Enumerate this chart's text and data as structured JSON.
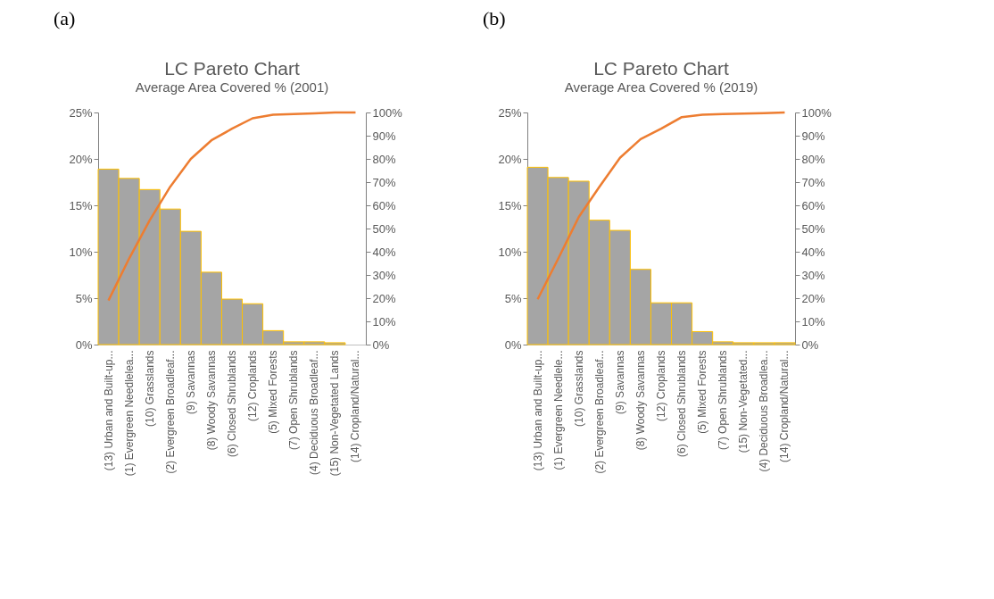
{
  "chart_data": [
    {
      "type": "bar",
      "title": "LC Pareto Chart",
      "subtitle": "Average Area Covered % (2001)",
      "annotations": [
        "(a)"
      ],
      "categories": [
        "(13) Urban and Built-up...",
        "(1) Evergreen Needlelea...",
        "(10) Grasslands",
        "(2) Evergreen Broadleaf...",
        "(9) Savannas",
        "(8) Woody Savannas",
        "(6) Closed Shrublands",
        "(12) Croplands",
        "(5) Mixed Forests",
        "(7) Open Shrublands",
        "(4) Deciduous Broadleaf...",
        "(15) Non-Vegetated Lands",
        "(14) Cropland/Natural..."
      ],
      "series": [
        {
          "type": "bar",
          "color": "#a5a5a5",
          "values": [
            18.9,
            17.9,
            16.7,
            14.6,
            12.2,
            7.8,
            4.9,
            4.4,
            1.5,
            0.3,
            0.3,
            0.2,
            0
          ]
        },
        {
          "type": "line",
          "axis": "y2",
          "color": "#ed7d31",
          "values": [
            19,
            37,
            53.5,
            68,
            80,
            88,
            93,
            97.5,
            99,
            99.3,
            99.6,
            100,
            100
          ]
        }
      ],
      "ylim": [
        0,
        25
      ],
      "yticks": [
        {
          "value": 0,
          "label": "0%"
        },
        {
          "value": 5,
          "label": "5%"
        },
        {
          "value": 10,
          "label": "10%"
        },
        {
          "value": 15,
          "label": "15%"
        },
        {
          "value": 20,
          "label": "20%"
        },
        {
          "value": 25,
          "label": "25%"
        }
      ],
      "y2lim": [
        0,
        100
      ],
      "y2ticks": [
        {
          "value": 0,
          "label": "0%"
        },
        {
          "value": 10,
          "label": "10%"
        },
        {
          "value": 20,
          "label": "20%"
        },
        {
          "value": 30,
          "label": "30%"
        },
        {
          "value": 40,
          "label": "40%"
        },
        {
          "value": 50,
          "label": "50%"
        },
        {
          "value": 60,
          "label": "60%"
        },
        {
          "value": 70,
          "label": "70%"
        },
        {
          "value": 80,
          "label": "80%"
        },
        {
          "value": 90,
          "label": "90%"
        },
        {
          "value": 100,
          "label": "100%"
        }
      ],
      "grid": false,
      "legend": false
    },
    {
      "type": "bar",
      "title": "LC Pareto Chart",
      "subtitle": "Average Area Covered % (2019)",
      "annotations": [
        "(b)"
      ],
      "categories": [
        "(13) Urban and Built-up...",
        "(1) Evergreen Needlele...",
        "(10) Grasslands",
        "(2) Evergreen Broadleaf...",
        "(9) Savannas",
        "(8) Woody Savannas",
        "(12) Croplands",
        "(6) Closed Shrublands",
        "(5) Mixed Forests",
        "(7) Open Shrublands",
        "(15) Non-Vegetated...",
        "(4) Deciduous Broadlea...",
        "(14) Cropland/Natural..."
      ],
      "series": [
        {
          "type": "bar",
          "color": "#a5a5a5",
          "values": [
            19.1,
            18.0,
            17.6,
            13.4,
            12.3,
            8.1,
            4.5,
            4.5,
            1.4,
            0.3,
            0.2,
            0.2,
            0.2
          ]
        },
        {
          "type": "line",
          "axis": "y2",
          "color": "#ed7d31",
          "values": [
            19.5,
            37,
            55,
            68,
            80.5,
            88.5,
            93,
            98,
            99,
            99.3,
            99.5,
            99.7,
            100
          ]
        }
      ],
      "ylim": [
        0,
        25
      ],
      "yticks": [
        {
          "value": 0,
          "label": "0%"
        },
        {
          "value": 5,
          "label": "5%"
        },
        {
          "value": 10,
          "label": "10%"
        },
        {
          "value": 15,
          "label": "15%"
        },
        {
          "value": 20,
          "label": "20%"
        },
        {
          "value": 25,
          "label": "25%"
        }
      ],
      "y2lim": [
        0,
        100
      ],
      "y2ticks": [
        {
          "value": 0,
          "label": "0%"
        },
        {
          "value": 10,
          "label": "10%"
        },
        {
          "value": 20,
          "label": "20%"
        },
        {
          "value": 30,
          "label": "30%"
        },
        {
          "value": 40,
          "label": "40%"
        },
        {
          "value": 50,
          "label": "50%"
        },
        {
          "value": 60,
          "label": "60%"
        },
        {
          "value": 70,
          "label": "70%"
        },
        {
          "value": 80,
          "label": "80%"
        },
        {
          "value": 90,
          "label": "90%"
        },
        {
          "value": 100,
          "label": "100%"
        }
      ],
      "grid": false,
      "legend": false
    }
  ]
}
